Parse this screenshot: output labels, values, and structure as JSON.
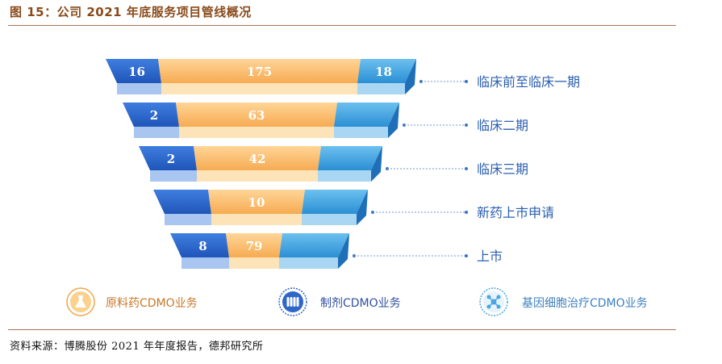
{
  "title": "图 15：公司 2021 年底服务项目管线概况",
  "source": "资料来源：博腾股份 2021 年年度报告，德邦研究所",
  "chart_data": {
    "type": "funnel",
    "stages": [
      {
        "label": "临床前至临床一期",
        "values": [
          16,
          175,
          18
        ]
      },
      {
        "label": "临床二期",
        "values": [
          2,
          63,
          null
        ]
      },
      {
        "label": "临床三期",
        "values": [
          2,
          42,
          null
        ]
      },
      {
        "label": "新药上市申请",
        "values": [
          null,
          10,
          null
        ]
      },
      {
        "label": "上市",
        "values": [
          8,
          79,
          null
        ]
      }
    ],
    "series": [
      {
        "name": "制剂CDMO业务",
        "color": "#2f66c9"
      },
      {
        "name": "原料药CDMO业务",
        "color": "#f7b15c"
      },
      {
        "name": "基因细胞治疗CDMO业务",
        "color": "#4aa6e0"
      }
    ],
    "legend": [
      {
        "name": "原料药CDMO业务",
        "icon": "flask-icon",
        "color": "#f7b15c"
      },
      {
        "name": "制剂CDMO业务",
        "icon": "vials-icon",
        "color": "#2f66c9"
      },
      {
        "name": "基因细胞治疗CDMO业务",
        "icon": "molecule-icon",
        "color": "#4aa6e0"
      }
    ],
    "legend_position": "bottom"
  }
}
